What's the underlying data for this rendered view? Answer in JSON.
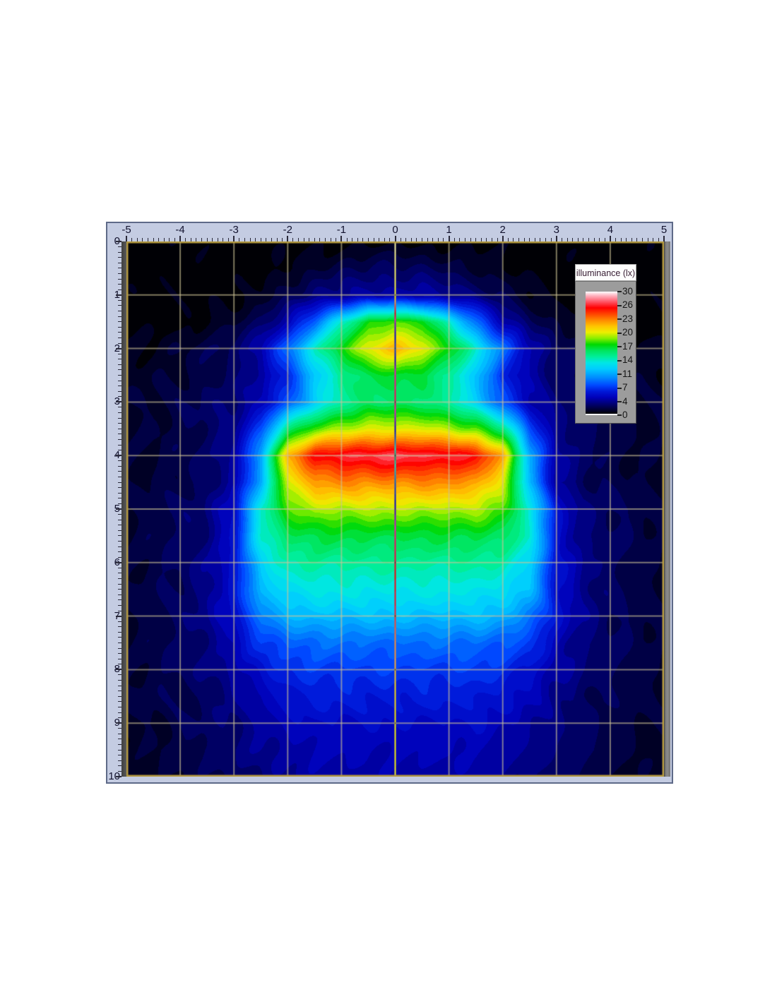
{
  "panel": {
    "background": "#c4cce2",
    "border_color": "#5e6a88",
    "left_bevel_color": "#4a4a4a",
    "right_bevel_color": "#7d7d7d"
  },
  "axes": {
    "x": {
      "min": -5,
      "max": 5,
      "tick_labels": [
        "-5",
        "-4",
        "-3",
        "-2",
        "-1",
        "0",
        "1",
        "2",
        "3",
        "4",
        "5"
      ],
      "minor_divisions_per_unit": 10
    },
    "y": {
      "min": 0,
      "max": 10,
      "tick_labels": [
        "0",
        "1",
        "2",
        "3",
        "4",
        "5",
        "6",
        "7",
        "8",
        "9",
        "10"
      ],
      "minor_divisions_per_unit": 10
    }
  },
  "grid_lines": {
    "color": "rgba(205,196,150,0.62)",
    "border_color": "#b49a42",
    "center_line_color": "#f0eec8"
  },
  "legend": {
    "title": "illuminance (lx)",
    "tick_labels": [
      "30",
      "26",
      "23",
      "20",
      "17",
      "14",
      "11",
      "7",
      "4",
      "0"
    ]
  },
  "chart_data": {
    "type": "heatmap",
    "title": "illuminance (lx)",
    "value_unit": "lx",
    "x_range": [
      -5,
      5
    ],
    "y_range": [
      0,
      10
    ],
    "grid_on": true,
    "legend_position": "top-right",
    "colorbar": {
      "label": "illuminance (lx)",
      "min": 0,
      "max": 30,
      "ticks": [
        0,
        4,
        7,
        11,
        14,
        17,
        20,
        23,
        26,
        30
      ],
      "color_stops": [
        [
          0,
          "#000005"
        ],
        [
          2,
          "#000060"
        ],
        [
          4,
          "#0000b8"
        ],
        [
          5.5,
          "#0018d8"
        ],
        [
          7,
          "#0048ff"
        ],
        [
          9,
          "#0090ff"
        ],
        [
          11,
          "#00ccff"
        ],
        [
          12.5,
          "#00e6e6"
        ],
        [
          14,
          "#00ee9a"
        ],
        [
          15.5,
          "#00e55e"
        ],
        [
          17,
          "#00d800"
        ],
        [
          18.5,
          "#88ee00"
        ],
        [
          20,
          "#eeee00"
        ],
        [
          21.5,
          "#ffc300"
        ],
        [
          23,
          "#ff8800"
        ],
        [
          24.5,
          "#ff4400"
        ],
        [
          26,
          "#ff0000"
        ],
        [
          27.5,
          "#ff5566"
        ],
        [
          29,
          "#ffb3c0"
        ],
        [
          30,
          "#ffffff"
        ]
      ]
    },
    "grid": {
      "x_start": -5,
      "x_step": 0.5,
      "y_start": 0,
      "y_step": 0.5,
      "values": [
        [
          0,
          0,
          0,
          0,
          0,
          0,
          0,
          0,
          0,
          0,
          0,
          0,
          0,
          0,
          0,
          0,
          0,
          0,
          0,
          0,
          0
        ],
        [
          0,
          0,
          0,
          0,
          0,
          0,
          0.5,
          1,
          1.5,
          2,
          2,
          2,
          1.5,
          1,
          0.5,
          0,
          0,
          0,
          0,
          0,
          0
        ],
        [
          0,
          0,
          0,
          0,
          0,
          0.5,
          1.5,
          2.5,
          3,
          3.5,
          3.5,
          3.5,
          3,
          2.5,
          1.5,
          0.5,
          0,
          0,
          0,
          0,
          0
        ],
        [
          0,
          0,
          0,
          0.5,
          1,
          2,
          4,
          8,
          13,
          17,
          18,
          17,
          13,
          8,
          4,
          2,
          1,
          0.5,
          0,
          0,
          0
        ],
        [
          0.5,
          0.5,
          1,
          1.5,
          2,
          4,
          8,
          13,
          17,
          20,
          22,
          20,
          17,
          13,
          8,
          4,
          2,
          1.5,
          1,
          0.5,
          0.5
        ],
        [
          0.5,
          1,
          1,
          1.5,
          2,
          3.5,
          6,
          11,
          14,
          16,
          16.5,
          16,
          14,
          11,
          6,
          3.5,
          2,
          1.5,
          1,
          1,
          0.5
        ],
        [
          1,
          1,
          1.5,
          2,
          2.5,
          4,
          7,
          11,
          14,
          15,
          15,
          15,
          14,
          11,
          7,
          4,
          2.5,
          2,
          1.5,
          1,
          1
        ],
        [
          1,
          1,
          1.5,
          2,
          3,
          7,
          15,
          18,
          19,
          20,
          20,
          20,
          19,
          18,
          15,
          7,
          3,
          2,
          1.5,
          1,
          1
        ],
        [
          1,
          1,
          1.5,
          2,
          3.5,
          10,
          22,
          26,
          27,
          27,
          27.5,
          27,
          27,
          26,
          22,
          10,
          3.5,
          2,
          1.5,
          1,
          1
        ],
        [
          1,
          1,
          1.5,
          2,
          3.5,
          10,
          20,
          22.5,
          23,
          23,
          23,
          23,
          23,
          22.5,
          20,
          10,
          3.5,
          2,
          1.5,
          1,
          1
        ],
        [
          1,
          1.5,
          2,
          2.5,
          5,
          13,
          17.5,
          19,
          19,
          19,
          19,
          19,
          19,
          19,
          17.5,
          13,
          5,
          2.5,
          2,
          1.5,
          1
        ],
        [
          1,
          1.5,
          2,
          2.5,
          5,
          13,
          15.5,
          16,
          16,
          16,
          16,
          16,
          16,
          16,
          15.5,
          13,
          5,
          2.5,
          2,
          1.5,
          1
        ],
        [
          1,
          1.5,
          2,
          3,
          5,
          11.5,
          13.5,
          14,
          14,
          14,
          14,
          14,
          14,
          14,
          13.5,
          11.5,
          5,
          3,
          2,
          1.5,
          1
        ],
        [
          1,
          1.5,
          2,
          3,
          5,
          10.5,
          12,
          12.5,
          12.5,
          12.5,
          12.5,
          12.5,
          12.5,
          12.5,
          12,
          10.5,
          5,
          3,
          2,
          1.5,
          1
        ],
        [
          1,
          1.5,
          2,
          3,
          5,
          8.5,
          10,
          10.5,
          10.5,
          10.5,
          10.5,
          10.5,
          10.5,
          10.5,
          10,
          8.5,
          5,
          3,
          2,
          1.5,
          1
        ],
        [
          1,
          1.5,
          2,
          2.5,
          4,
          6.5,
          7.5,
          8,
          8,
          8,
          8,
          8,
          8,
          8,
          7.5,
          6.5,
          4,
          2.5,
          2,
          1.5,
          1
        ],
        [
          1,
          1.5,
          2,
          2.5,
          3.5,
          5,
          6,
          6.5,
          6.5,
          6.5,
          6.5,
          6.5,
          6.5,
          6.5,
          6,
          5,
          3.5,
          2.5,
          2,
          1.5,
          1
        ],
        [
          1,
          1.5,
          1.5,
          2,
          3,
          4,
          5,
          5.5,
          5.5,
          5.5,
          5.5,
          5.5,
          5.5,
          5.5,
          5,
          4,
          3,
          2,
          1.5,
          1.5,
          1
        ],
        [
          1,
          1,
          1.5,
          2,
          2.5,
          3.5,
          4,
          4.5,
          4.5,
          4.5,
          4.5,
          4.5,
          4.5,
          4.5,
          4,
          3.5,
          2.5,
          2,
          1.5,
          1,
          1
        ],
        [
          0.5,
          1,
          1.5,
          2,
          2.5,
          3,
          3.5,
          4,
          4,
          4,
          4,
          4,
          4,
          4,
          3.5,
          3,
          2.5,
          2,
          1.5,
          1,
          0.5
        ],
        [
          0.5,
          1,
          1,
          1.5,
          2,
          2.5,
          3,
          3.5,
          3.5,
          3.5,
          3.5,
          3.5,
          3.5,
          3.5,
          3,
          2.5,
          2,
          1.5,
          1,
          1,
          0.5
        ]
      ]
    }
  }
}
